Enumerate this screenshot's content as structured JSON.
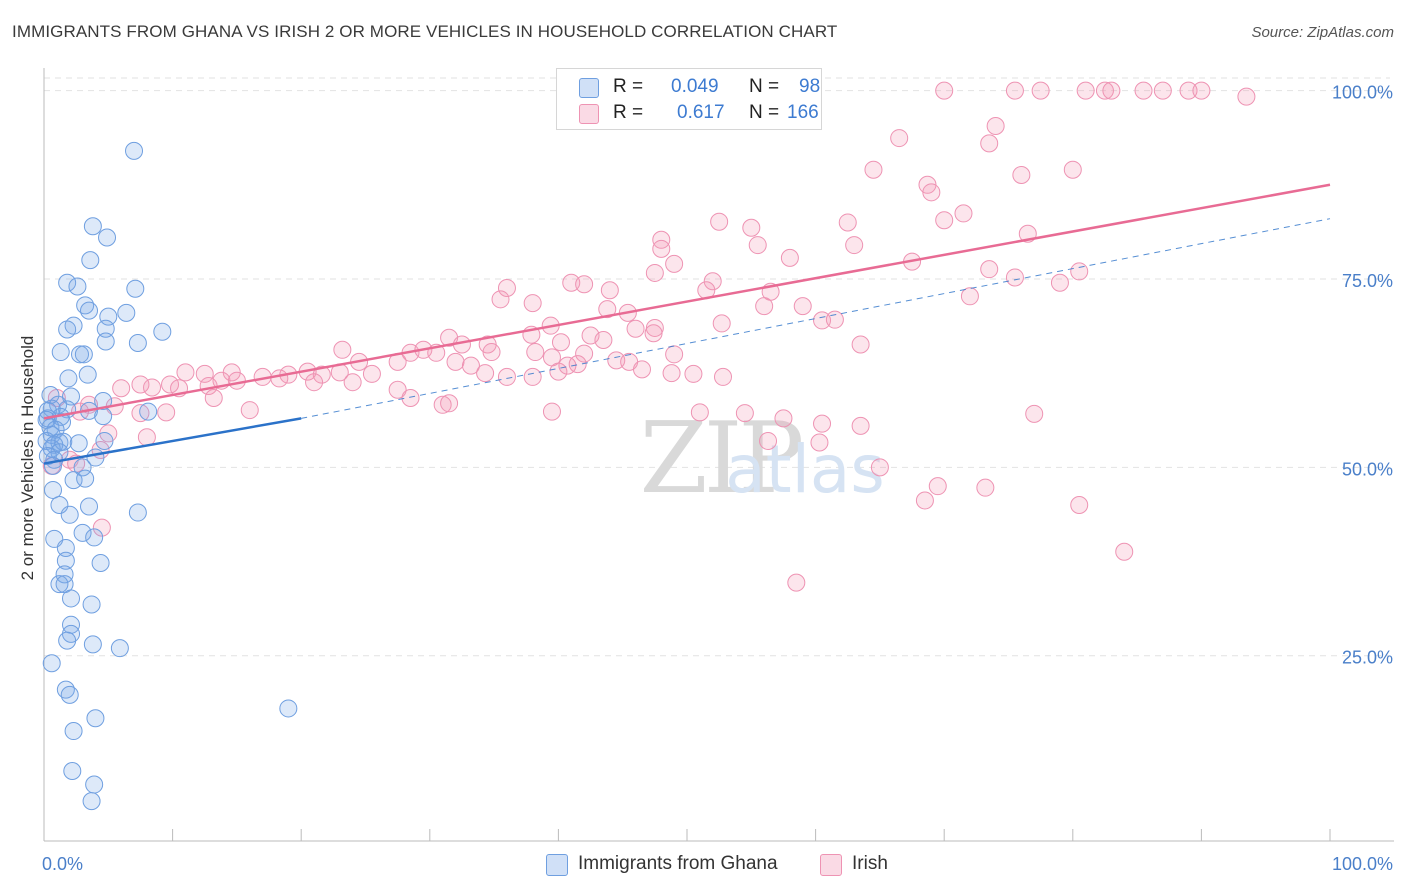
{
  "title": "IMMIGRANTS FROM GHANA VS IRISH 2 OR MORE VEHICLES IN HOUSEHOLD CORRELATION CHART",
  "source": "Source: ZipAtlas.com",
  "watermark": {
    "zip": "ZIP",
    "atlas": "atlas"
  },
  "stats": {
    "r_label": "R =",
    "n_label": "N =",
    "rows": [
      {
        "series": "Immigrants from Ghana",
        "r": "0.049",
        "n": "98"
      },
      {
        "series": "Irish",
        "r": "0.617",
        "n": "166"
      }
    ]
  },
  "legend": [
    "Immigrants from Ghana",
    "Irish"
  ],
  "colors": {
    "ghana_fill": "rgba(121,167,232,0.25)",
    "ghana_stroke": "#6f9fe0",
    "ghana_line": "#2b72c9",
    "irish_fill": "rgba(242,150,181,0.25)",
    "irish_stroke": "#ee93b3",
    "irish_line": "#e86b94",
    "axis_value_text": "#4a7fc9",
    "grid": "#e2e2e2"
  },
  "chart_data": {
    "type": "scatter",
    "title": "IMMIGRANTS FROM GHANA VS IRISH 2 OR MORE VEHICLES IN HOUSEHOLD CORRELATION CHART",
    "xlabel": "",
    "ylabel": "2 or more Vehicles in Household",
    "xlim": [
      0,
      100
    ],
    "ylim": [
      2,
      103
    ],
    "x_tick_labels": [
      "0.0%",
      "100.0%"
    ],
    "y_ticks": [
      25,
      50,
      75,
      100
    ],
    "y_tick_labels": [
      "25.0%",
      "50.0%",
      "75.0%",
      "100.0%"
    ],
    "grid": true,
    "series": [
      {
        "name": "Immigrants from Ghana",
        "r": 0.049,
        "n": 98,
        "trend": {
          "x0": 0,
          "y0": 50.5,
          "x1": 20,
          "y1": 56.5,
          "dash_to_x": 100,
          "dash_to_y": 83
        },
        "points": [
          [
            7,
            92
          ],
          [
            3.8,
            82
          ],
          [
            4.9,
            80.5
          ],
          [
            3.6,
            77.5
          ],
          [
            1.8,
            74.5
          ],
          [
            2.6,
            74
          ],
          [
            7.1,
            73.7
          ],
          [
            3.2,
            71.5
          ],
          [
            3.5,
            70.8
          ],
          [
            6.4,
            70.5
          ],
          [
            5,
            70
          ],
          [
            2.3,
            68.8
          ],
          [
            1.8,
            68.3
          ],
          [
            4.8,
            68.4
          ],
          [
            9.2,
            68
          ],
          [
            7.3,
            66.5
          ],
          [
            4.8,
            66.7
          ],
          [
            1.3,
            65.3
          ],
          [
            2.8,
            65
          ],
          [
            3.1,
            65
          ],
          [
            3.4,
            62.3
          ],
          [
            1.9,
            61.8
          ],
          [
            0.5,
            59.6
          ],
          [
            2.1,
            59.4
          ],
          [
            4.6,
            58.8
          ],
          [
            1.1,
            58.3
          ],
          [
            0.6,
            57.8
          ],
          [
            0.3,
            57.5
          ],
          [
            1.8,
            57.7
          ],
          [
            3.5,
            57.5
          ],
          [
            8.1,
            57.4
          ],
          [
            1.3,
            56.7
          ],
          [
            0.3,
            56.5
          ],
          [
            1.4,
            56
          ],
          [
            4.6,
            56.8
          ],
          [
            0.2,
            56.3
          ],
          [
            0.5,
            55.3
          ],
          [
            0.9,
            55
          ],
          [
            0.6,
            54.3
          ],
          [
            0.2,
            53.5
          ],
          [
            1.2,
            53.3
          ],
          [
            0.8,
            53
          ],
          [
            0.6,
            52.5
          ],
          [
            1.5,
            53.4
          ],
          [
            2.7,
            53.2
          ],
          [
            4.7,
            53.5
          ],
          [
            1.2,
            52
          ],
          [
            0.3,
            51.5
          ],
          [
            0.8,
            51
          ],
          [
            4,
            51.3
          ],
          [
            0.7,
            50.2
          ],
          [
            3,
            50
          ],
          [
            2.3,
            48.3
          ],
          [
            3.2,
            48.5
          ],
          [
            0.7,
            47
          ],
          [
            1.2,
            45
          ],
          [
            3.5,
            44.8
          ],
          [
            7.3,
            44
          ],
          [
            2,
            43.7
          ],
          [
            3,
            41.3
          ],
          [
            0.8,
            40.5
          ],
          [
            3.9,
            40.7
          ],
          [
            1.7,
            39.3
          ],
          [
            4.4,
            37.3
          ],
          [
            1.7,
            37.6
          ],
          [
            1.6,
            35.8
          ],
          [
            1.2,
            34.5
          ],
          [
            1.6,
            34.5
          ],
          [
            2.1,
            32.6
          ],
          [
            3.7,
            31.8
          ],
          [
            2.1,
            29.1
          ],
          [
            2.1,
            27.9
          ],
          [
            1.8,
            27
          ],
          [
            3.8,
            26.5
          ],
          [
            5.9,
            26
          ],
          [
            0.6,
            24
          ],
          [
            1.7,
            20.5
          ],
          [
            2,
            19.8
          ],
          [
            19,
            18
          ],
          [
            4,
            16.7
          ],
          [
            2.3,
            15
          ],
          [
            2.2,
            9.7
          ],
          [
            3.9,
            7.9
          ],
          [
            3.7,
            5.7
          ]
        ]
      },
      {
        "name": "Irish",
        "r": 0.617,
        "n": 166,
        "trend": {
          "x0": 0,
          "y0": 56.5,
          "x1": 100,
          "y1": 87.5
        },
        "points": [
          [
            70,
            100
          ],
          [
            75.5,
            100
          ],
          [
            77.5,
            100
          ],
          [
            81,
            100
          ],
          [
            82.5,
            100
          ],
          [
            83,
            100
          ],
          [
            85.5,
            100
          ],
          [
            87,
            100
          ],
          [
            89,
            100
          ],
          [
            90,
            100
          ],
          [
            93.5,
            99.2
          ],
          [
            74,
            95.3
          ],
          [
            66.5,
            93.7
          ],
          [
            73.5,
            93
          ],
          [
            64.5,
            89.5
          ],
          [
            76,
            88.8
          ],
          [
            80,
            89.5
          ],
          [
            68.7,
            87.5
          ],
          [
            69,
            86.5
          ],
          [
            71.5,
            83.7
          ],
          [
            70,
            82.8
          ],
          [
            62.5,
            82.5
          ],
          [
            52.5,
            82.6
          ],
          [
            55,
            81.8
          ],
          [
            55.5,
            79.5
          ],
          [
            63,
            79.5
          ],
          [
            76.5,
            81
          ],
          [
            48,
            80.2
          ],
          [
            48,
            79
          ],
          [
            58,
            77.8
          ],
          [
            49,
            77
          ],
          [
            47.5,
            75.8
          ],
          [
            67.5,
            77.3
          ],
          [
            73.5,
            76.3
          ],
          [
            75.5,
            75.2
          ],
          [
            79,
            74.5
          ],
          [
            80.5,
            76
          ],
          [
            41,
            74.5
          ],
          [
            42,
            74.3
          ],
          [
            36,
            73.8
          ],
          [
            44,
            73.5
          ],
          [
            52,
            74.7
          ],
          [
            51.5,
            73.5
          ],
          [
            56.5,
            73.3
          ],
          [
            72,
            72.7
          ],
          [
            35.5,
            72.3
          ],
          [
            38,
            71.8
          ],
          [
            43.8,
            71
          ],
          [
            45.4,
            70.5
          ],
          [
            56,
            71.4
          ],
          [
            59,
            71.4
          ],
          [
            60.5,
            69.5
          ],
          [
            61.5,
            69.6
          ],
          [
            52.7,
            69.1
          ],
          [
            46,
            68.4
          ],
          [
            47.5,
            68.5
          ],
          [
            39.4,
            68.8
          ],
          [
            37.9,
            67.6
          ],
          [
            31.5,
            67.2
          ],
          [
            42.5,
            67.5
          ],
          [
            47.4,
            67.8
          ],
          [
            43.5,
            66.9
          ],
          [
            40.2,
            66.6
          ],
          [
            32.5,
            66.3
          ],
          [
            34.5,
            66.3
          ],
          [
            38.2,
            65.3
          ],
          [
            42,
            65.1
          ],
          [
            49,
            65
          ],
          [
            63.5,
            66.3
          ],
          [
            28.5,
            65.2
          ],
          [
            23.2,
            65.6
          ],
          [
            29.5,
            65.6
          ],
          [
            30.5,
            65.2
          ],
          [
            34.8,
            65.3
          ],
          [
            39.5,
            64.6
          ],
          [
            32,
            64
          ],
          [
            33.2,
            63.5
          ],
          [
            27.5,
            64
          ],
          [
            24.5,
            64
          ],
          [
            44.5,
            64.2
          ],
          [
            45.5,
            64
          ],
          [
            34.3,
            62.5
          ],
          [
            50.5,
            62.4
          ],
          [
            52.8,
            62
          ],
          [
            40,
            62.7
          ],
          [
            48.8,
            62.5
          ],
          [
            46.5,
            63
          ],
          [
            36,
            62
          ],
          [
            38,
            62
          ],
          [
            41.5,
            63.7
          ],
          [
            40.7,
            63.5
          ],
          [
            20.5,
            62.7
          ],
          [
            23,
            62.6
          ],
          [
            25.5,
            62.4
          ],
          [
            11,
            62.6
          ],
          [
            12.5,
            62.4
          ],
          [
            14.6,
            62.6
          ],
          [
            19,
            62.3
          ],
          [
            21.6,
            62.3
          ],
          [
            17,
            62
          ],
          [
            18.3,
            61.8
          ],
          [
            13.8,
            61.5
          ],
          [
            15,
            61.5
          ],
          [
            21,
            61.3
          ],
          [
            24,
            61.3
          ],
          [
            7.5,
            61
          ],
          [
            9.8,
            61
          ],
          [
            6,
            60.5
          ],
          [
            8.4,
            60.6
          ],
          [
            10.5,
            60.5
          ],
          [
            12.8,
            60.8
          ],
          [
            27.5,
            60.3
          ],
          [
            13.2,
            59.2
          ],
          [
            3.5,
            58.3
          ],
          [
            5.5,
            58.1
          ],
          [
            9.5,
            57.3
          ],
          [
            2.8,
            57.4
          ],
          [
            7.5,
            57.2
          ],
          [
            16,
            57.6
          ],
          [
            1,
            59.2
          ],
          [
            28.5,
            59.2
          ],
          [
            31,
            58.3
          ],
          [
            31.5,
            58.5
          ],
          [
            39.5,
            57.4
          ],
          [
            51,
            57.3
          ],
          [
            54.5,
            57.2
          ],
          [
            57.5,
            56.5
          ],
          [
            77,
            57.1
          ],
          [
            60.5,
            55.8
          ],
          [
            63.5,
            55.5
          ],
          [
            56.3,
            53.5
          ],
          [
            60.3,
            53.3
          ],
          [
            5,
            54.5
          ],
          [
            8,
            54
          ],
          [
            4.4,
            52.3
          ],
          [
            2,
            51
          ],
          [
            0.6,
            50.2
          ],
          [
            2.5,
            50.5
          ],
          [
            65,
            50
          ],
          [
            69.5,
            47.5
          ],
          [
            73.2,
            47.3
          ],
          [
            68.5,
            45.6
          ],
          [
            80.5,
            45
          ],
          [
            4.5,
            42
          ],
          [
            84,
            38.8
          ],
          [
            58.5,
            34.7
          ]
        ]
      }
    ]
  }
}
